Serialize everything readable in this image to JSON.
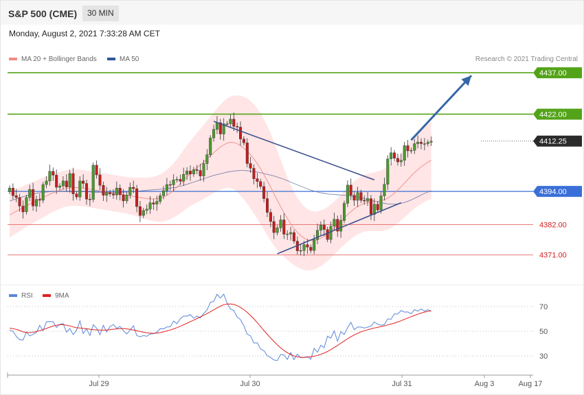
{
  "header": {
    "title": "S&P 500 (CME)",
    "timeframe": "30 MIN"
  },
  "datetime": "Monday, August 2, 2021 7:33:28 AM CET",
  "legend": {
    "ma20": "MA 20 + Bollinger Bands",
    "ma50": "MA 50"
  },
  "credit": "Research © 2021 Trading Central",
  "rsi_legend": {
    "rsi": "RSI",
    "ma9": "9MA"
  },
  "colors": {
    "up": "#4a9a2f",
    "down": "#c41e1e",
    "target": "#53a318",
    "pivot": "#3a6fd8",
    "support": "#e87878",
    "trend": "#3a4f8c",
    "arrow": "#3567a8",
    "band": "#ffdcdc",
    "current": "#2b2b2b",
    "rsi": "#5a86d8",
    "rsi_ma": "#e02020"
  },
  "chart_data": [
    {
      "type": "candlestick",
      "instrument": "S&P 500 (CME)",
      "timeframe": "30 MIN",
      "x_labels": [
        "Jul 29",
        "Jul 30",
        "Jul 31",
        "Aug 3",
        "Aug 17"
      ],
      "ylim": [
        4360,
        4441
      ],
      "levels": [
        {
          "label": "4437.00",
          "value": 4437.0,
          "role": "target"
        },
        {
          "label": "4422.00",
          "value": 4422.0,
          "role": "target"
        },
        {
          "label": "4412.25",
          "value": 4412.25,
          "role": "current"
        },
        {
          "label": "4394.00",
          "value": 4394.0,
          "role": "pivot"
        },
        {
          "label": "4382.00",
          "value": 4382.0,
          "role": "support"
        },
        {
          "label": "4371.00",
          "value": 4371.0,
          "role": "support"
        }
      ],
      "indicators": [
        "MA 20 + Bollinger Bands",
        "MA 50"
      ],
      "closes": [
        4395.2,
        4392.5,
        4391.8,
        4388.7,
        4386.6,
        4391.8,
        4394.7,
        4388.7,
        4391.1,
        4390.8,
        4396.5,
        4397.8,
        4401.3,
        4399.9,
        4395.5,
        4396.0,
        4397.8,
        4395.6,
        4400.5,
        4393.1,
        4392.0,
        4397.8,
        4396.9,
        4391.2,
        4391.1,
        4403.5,
        4400.0,
        4396.2,
        4392.6,
        4393.6,
        4393.1,
        4392.7,
        4395.2,
        4392.8,
        4390.6,
        4392.7,
        4395.5,
        4395.0,
        4388.5,
        4385.3,
        4387.1,
        4387.6,
        4389.9,
        4389.4,
        4390.4,
        4392.5,
        4394.3,
        4396.5,
        4396.4,
        4398.2,
        4398.4,
        4397.7,
        4400.2,
        4401.4,
        4400.3,
        4401.9,
        4401.6,
        4399.6,
        4404.1,
        4407.3,
        4413.4,
        4416.5,
        4418.9,
        4414.8,
        4418.5,
        4418.5,
        4420.2,
        4417.6,
        4417.3,
        4413.0,
        4411.6,
        4404.1,
        4402.4,
        4398.6,
        4397.6,
        4395.8,
        4391.4,
        4386.4,
        4383.1,
        4379.1,
        4380.8,
        4383.7,
        4378.5,
        4378.6,
        4379.1,
        4376.0,
        4372.5,
        4372.6,
        4374.7,
        4373.8,
        4372.6,
        4376.6,
        4379.9,
        4381.8,
        4380.2,
        4376.6,
        4381.4,
        4383.9,
        4379.6,
        4383.5,
        4389.7,
        4396.3,
        4392.6,
        4390.8,
        4393.6,
        4390.8,
        4390.5,
        4391.4,
        4385.7,
        4389.4,
        4387.3,
        4392.4,
        4396.6,
        4405.8,
        4408.0,
        4406.0,
        4404.7,
        4405.3,
        4410.6,
        4408.7,
        4408.9,
        4411.3,
        4411.9,
        4411.3,
        4411.3,
        4411.8,
        4412.2
      ],
      "ma20": [
        4385.5,
        4386.2,
        4386.8,
        4387.5,
        4388.1,
        4388.8,
        4389.4,
        4390.0,
        4390.6,
        4391.2,
        4391.8,
        4392.4,
        4393.0,
        4393.5,
        4394.0,
        4394.4,
        4394.8,
        4395.1,
        4395.3,
        4395.4,
        4395.4,
        4395.3,
        4395.2,
        4395.0,
        4394.8,
        4394.6,
        4394.4,
        4394.2,
        4394.0,
        4393.8,
        4393.6,
        4393.4,
        4393.2,
        4393.0,
        4392.8,
        4392.6,
        4392.4,
        4392.2,
        4392.0,
        4391.8,
        4391.6,
        4391.4,
        4391.3,
        4391.3,
        4391.4,
        4391.6,
        4392.0,
        4392.6,
        4393.4,
        4394.4,
        4395.5,
        4396.7,
        4398.0,
        4399.3,
        4400.5,
        4401.6,
        4402.6,
        4403.6,
        4404.7,
        4405.8,
        4406.9,
        4408.0,
        4409.1,
        4410.1,
        4410.9,
        4411.5,
        4411.8,
        4411.7,
        4411.3,
        4410.6,
        4409.7,
        4408.6,
        4407.3,
        4405.8,
        4404.1,
        4402.2,
        4400.1,
        4397.9,
        4395.6,
        4393.2,
        4390.8,
        4388.5,
        4386.3,
        4384.2,
        4382.3,
        4380.6,
        4379.2,
        4378.0,
        4377.1,
        4376.5,
        4376.2,
        4376.2,
        4376.5,
        4377.0,
        4377.7,
        4378.6,
        4379.6,
        4380.7,
        4381.9,
        4383.2,
        4384.4,
        4385.6,
        4386.7,
        4387.7,
        4388.5,
        4389.2,
        4389.7,
        4390.0,
        4390.2,
        4390.3,
        4390.4,
        4390.6,
        4391.0,
        4391.6,
        4392.4,
        4393.4,
        4394.5,
        4395.7,
        4397.0,
        4398.3,
        4399.6,
        4400.8,
        4401.9,
        4402.9,
        4403.8,
        4404.6,
        4405.3
      ],
      "ma50": [
        4390.5,
        4390.9,
        4391.3,
        4391.7,
        4392.1,
        4392.4,
        4392.7,
        4393.0,
        4393.3,
        4393.5,
        4393.7,
        4393.8,
        4393.9,
        4394.0,
        4394.1,
        4394.1,
        4394.1,
        4394.1,
        4394.1,
        4394.1,
        4394.0,
        4394.0,
        4393.9,
        4393.9,
        4393.8,
        4393.8,
        4393.7,
        4393.7,
        4393.7,
        4393.6,
        4393.6,
        4393.6,
        4393.6,
        4393.6,
        4393.7,
        4393.8,
        4393.9,
        4394.0,
        4394.1,
        4394.2,
        4394.3,
        4394.4,
        4394.5,
        4394.6,
        4394.7,
        4394.8,
        4394.9,
        4395.0,
        4395.2,
        4395.4,
        4395.6,
        4395.9,
        4396.2,
        4396.6,
        4397.0,
        4397.4,
        4397.8,
        4398.2,
        4398.6,
        4399.0,
        4399.4,
        4399.8,
        4400.1,
        4400.4,
        4400.7,
        4401.0,
        4401.2,
        4401.4,
        4401.5,
        4401.6,
        4401.6,
        4401.5,
        4401.4,
        4401.2,
        4401.0,
        4400.8,
        4400.5,
        4400.2,
        4399.9,
        4399.6,
        4399.2,
        4398.8,
        4398.4,
        4397.9,
        4397.4,
        4396.9,
        4396.4,
        4395.9,
        4395.4,
        4394.9,
        4394.5,
        4394.1,
        4393.8,
        4393.5,
        4393.3,
        4393.1,
        4393.0,
        4392.9,
        4392.8,
        4392.7,
        4392.6,
        4392.5,
        4392.3,
        4392.1,
        4391.9,
        4391.7,
        4391.4,
        4391.1,
        4390.8,
        4390.5,
        4390.2,
        4389.9,
        4389.7,
        4389.5,
        4389.4,
        4389.4,
        4389.5,
        4389.7,
        4390.0,
        4390.4,
        4390.9,
        4391.5,
        4392.1,
        4392.7,
        4393.3,
        4393.8,
        4394.3
      ],
      "bb_width": [
        8.2,
        8.1,
        8.0,
        7.9,
        7.8,
        7.7,
        7.6,
        7.5,
        7.4,
        7.3,
        7.2,
        7.1,
        7.0,
        6.9,
        6.8,
        6.7,
        6.6,
        6.6,
        6.6,
        6.6,
        6.6,
        6.6,
        6.6,
        6.6,
        6.6,
        6.6,
        6.6,
        6.6,
        6.6,
        6.6,
        6.6,
        6.6,
        6.6,
        6.6,
        6.6,
        6.6,
        6.7,
        6.8,
        7.0,
        7.2,
        7.4,
        7.6,
        7.8,
        8.0,
        8.3,
        8.6,
        8.9,
        9.2,
        9.5,
        9.8,
        10.2,
        10.6,
        11.0,
        11.4,
        11.8,
        12.2,
        12.6,
        13.0,
        13.4,
        13.8,
        14.2,
        14.6,
        15.0,
        15.4,
        15.8,
        16.2,
        16.6,
        17.0,
        17.5,
        18.1,
        18.6,
        19.1,
        19.5,
        19.8,
        20.0,
        20.1,
        20.0,
        19.8,
        19.4,
        18.8,
        18.0,
        17.0,
        16.0,
        15.0,
        14.1,
        13.3,
        12.6,
        12.0,
        11.5,
        11.1,
        10.8,
        10.5,
        10.3,
        10.1,
        9.9,
        9.8,
        9.7,
        9.6,
        9.6,
        9.6,
        9.7,
        9.8,
        9.9,
        10.0,
        10.1,
        10.2,
        10.3,
        10.4,
        10.5,
        10.6,
        10.8,
        11.0,
        11.2,
        11.4,
        11.6,
        11.8,
        12.0,
        12.2,
        12.4,
        12.6,
        12.8,
        13.0,
        13.2,
        13.4,
        13.6,
        13.8,
        14.0
      ],
      "trendlines": [
        {
          "name": "resistance",
          "from": [
            61,
            4419.4
          ],
          "to": [
            109,
            4398.2
          ]
        },
        {
          "name": "support",
          "from": [
            80,
            4371.4
          ],
          "to": [
            117,
            4389.9
          ]
        }
      ],
      "projection": {
        "from": [
          120,
          4412.6
        ],
        "to": [
          138,
          4436.0
        ]
      }
    },
    {
      "type": "line",
      "name": "RSI",
      "yticks": [
        70,
        50,
        30
      ],
      "ylim": [
        15,
        85
      ],
      "rsi": [
        50.8,
        50.0,
        45.8,
        43.1,
        42.8,
        49.4,
        46.2,
        47.4,
        49.1,
        54.7,
        50.4,
        57.7,
        57.8,
        57.7,
        53.0,
        55.6,
        56.2,
        49.2,
        52.2,
        47.2,
        50.7,
        58.4,
        48.1,
        51.9,
        46.5,
        55.3,
        52.5,
        47.2,
        54.8,
        49.4,
        53.8,
        55.5,
        52.4,
        53.9,
        50.4,
        47.8,
        50.9,
        54.5,
        46.5,
        45.5,
        46.5,
        45.9,
        47.8,
        48.0,
        49.3,
        52.1,
        51.9,
        53.5,
        53.6,
        58.2,
        56.1,
        60.1,
        62.3,
        62.2,
        63.4,
        60.6,
        62.2,
        60.8,
        64.4,
        67.2,
        73.4,
        74.2,
        79.9,
        76.9,
        80.0,
        72.6,
        68.0,
        66.8,
        61.5,
        59.4,
        54.4,
        47.6,
        46.3,
        40.5,
        40.6,
        35.6,
        34.2,
        30.1,
        28.7,
        26.7,
        26.3,
        31.2,
        30.7,
        27.2,
        32.8,
        27.0,
        31.4,
        28.5,
        28.9,
        29.4,
        27.3,
        36.1,
        33.0,
        38.6,
        36.7,
        46.0,
        44.4,
        50.3,
        41.9,
        49.7,
        47.4,
        52.9,
        57.2,
        51.3,
        53.4,
        53.4,
        52.6,
        53.3,
        54.3,
        57.5,
        55.6,
        54.9,
        55.4,
        60.0,
        59.7,
        64.1,
        63.9,
        66.7,
        65.5,
        65.6,
        64.1,
        67.5,
        66.2,
        68.0,
        66.3,
        67.5,
        66.2
      ],
      "rsi_ma": [
        52.5,
        52.1,
        51.5,
        50.6,
        49.5,
        49.0,
        48.9,
        49.2,
        49.7,
        50.5,
        51.3,
        52.3,
        53.3,
        54.2,
        54.9,
        55.3,
        55.3,
        54.9,
        54.3,
        53.5,
        52.8,
        52.6,
        52.3,
        52.0,
        51.6,
        51.3,
        51.1,
        50.9,
        50.9,
        51.0,
        51.3,
        51.6,
        51.9,
        52.1,
        52.2,
        51.9,
        51.5,
        51.0,
        50.4,
        49.8,
        49.2,
        48.7,
        48.4,
        48.3,
        48.5,
        48.9,
        49.5,
        50.2,
        51.0,
        51.9,
        52.9,
        54.0,
        55.2,
        56.4,
        57.7,
        59.0,
        60.3,
        61.6,
        62.9,
        64.3,
        65.8,
        67.3,
        68.9,
        70.3,
        71.5,
        72.0,
        72.1,
        71.7,
        70.7,
        69.3,
        67.5,
        65.3,
        62.8,
        60.0,
        57.0,
        53.8,
        50.6,
        47.5,
        44.5,
        41.7,
        39.0,
        36.5,
        34.4,
        32.6,
        31.1,
        30.0,
        29.3,
        28.9,
        28.8,
        29.0,
        29.3,
        29.8,
        30.4,
        31.3,
        32.3,
        33.6,
        35.1,
        36.8,
        38.5,
        40.3,
        42.1,
        43.9,
        45.5,
        47.0,
        48.3,
        49.5,
        50.4,
        51.2,
        51.9,
        52.6,
        53.2,
        53.8,
        54.4,
        55.1,
        55.8,
        56.6,
        57.5,
        58.5,
        59.6,
        60.7,
        61.8,
        62.8,
        63.8,
        64.7,
        65.5,
        66.1,
        66.5
      ]
    }
  ]
}
